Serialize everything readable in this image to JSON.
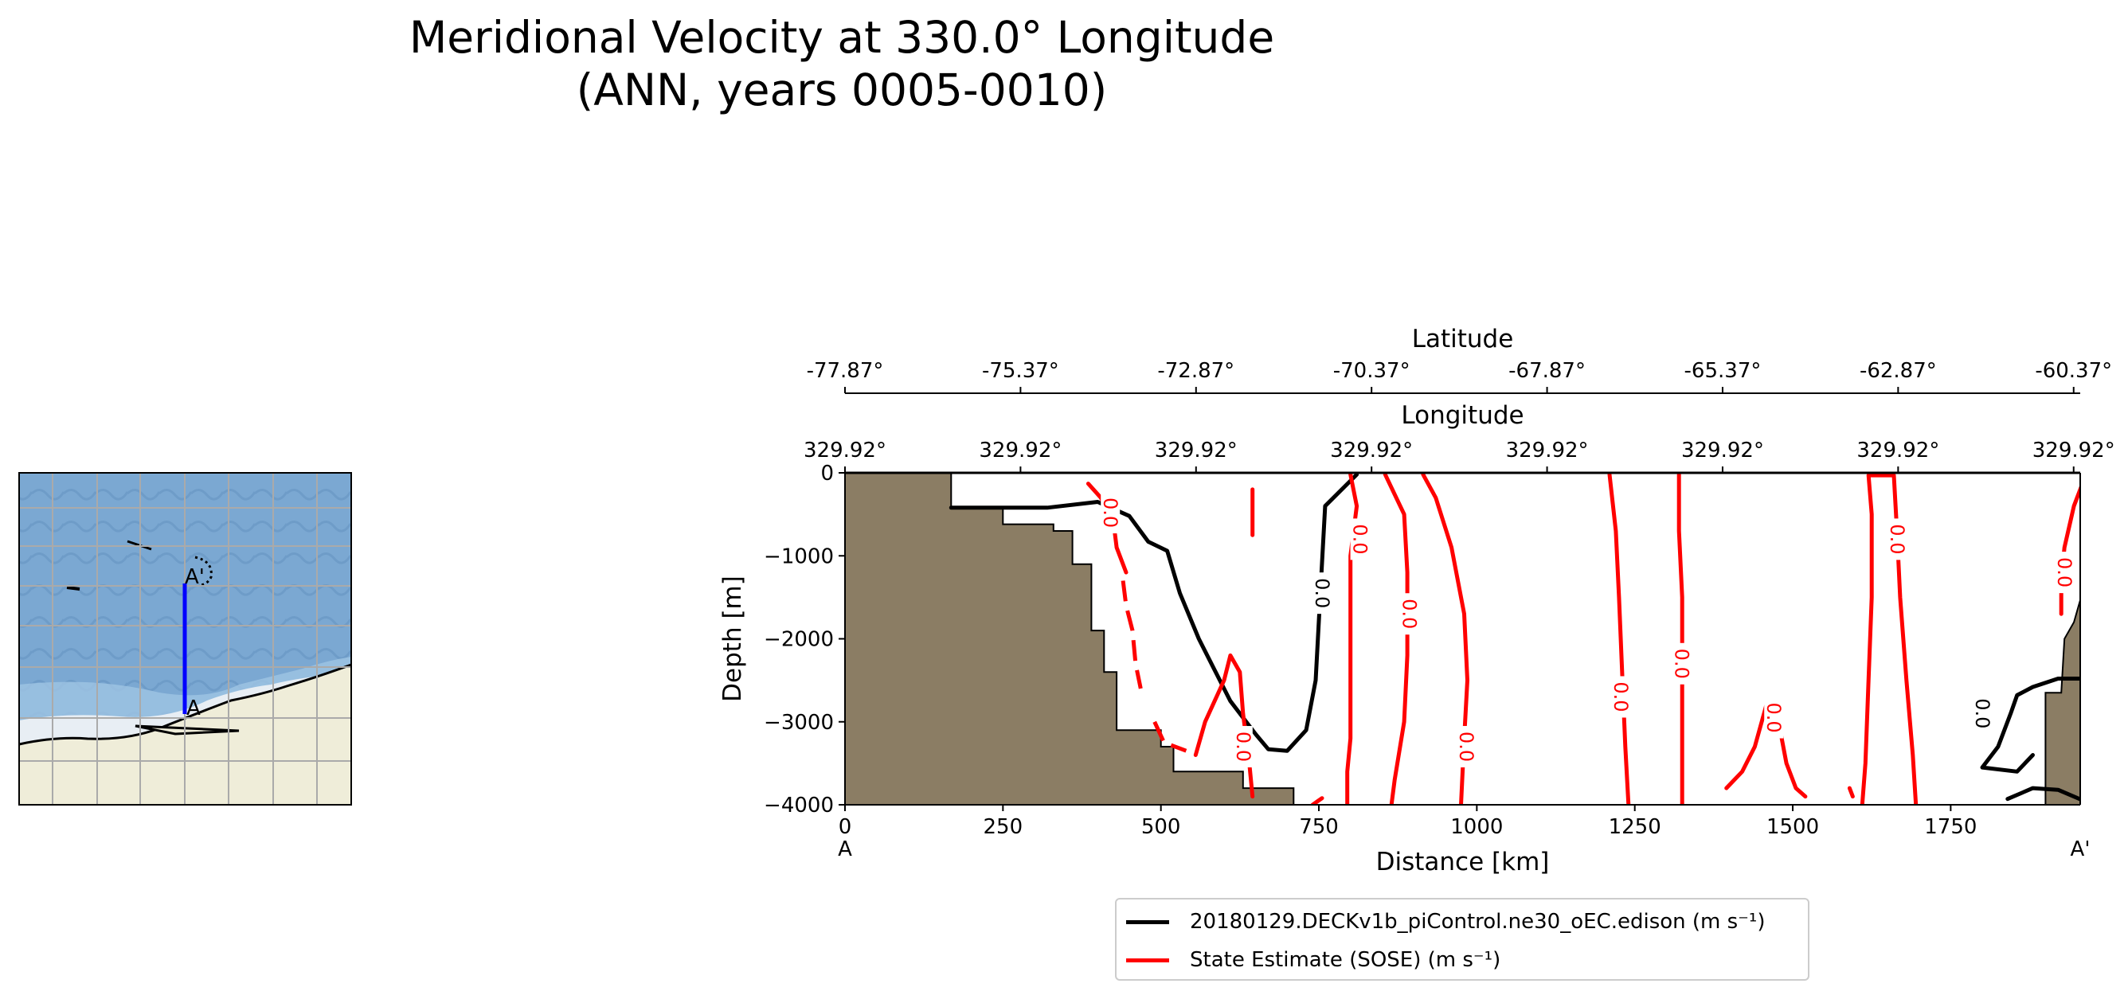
{
  "title": {
    "line1": "Meridional Velocity at 330.0° Longitude",
    "line2": "(ANN, years 0005-0010)"
  },
  "colors": {
    "model": "#000000",
    "obs": "#ff0000",
    "land": "#8b7d64",
    "ocean_map": "#7aa7cf",
    "land_map": "#efedd9",
    "transect": "#0000ff"
  },
  "inset_map": {
    "label_start": "A",
    "label_end": "A'",
    "icons": [
      "coastline-icon",
      "transect-line-icon"
    ]
  },
  "chart_data": {
    "type": "contour",
    "xlabel": "Distance [km]",
    "ylabel": "Depth [m]",
    "xlim": [
      0,
      1955
    ],
    "ylim": [
      -4000,
      0
    ],
    "x_ticks": [
      0,
      250,
      500,
      750,
      1000,
      1250,
      1500,
      1750
    ],
    "y_ticks": [
      0,
      -1000,
      -2000,
      -3000,
      -4000
    ],
    "x_tick_labels": [
      "0",
      "250",
      "500",
      "750",
      "1000",
      "1250",
      "1500",
      "1750"
    ],
    "y_tick_labels": [
      "0",
      "−1000",
      "−2000",
      "−3000",
      "−4000"
    ],
    "start_label": "A",
    "end_label": "A'",
    "lat_axis": {
      "label": "Latitude",
      "ticks": [
        0,
        277.8,
        555.6,
        833.4,
        1111.2,
        1389,
        1666.8,
        1944.6
      ],
      "tick_labels": [
        "-77.87°",
        "-75.37°",
        "-72.87°",
        "-70.37°",
        "-67.87°",
        "-65.37°",
        "-62.87°",
        "-60.37°"
      ]
    },
    "lon_axis": {
      "label": "Longitude",
      "ticks": [
        0,
        277.8,
        555.6,
        833.4,
        1111.2,
        1389,
        1666.8,
        1944.6
      ],
      "tick_labels": [
        "329.92°",
        "329.92°",
        "329.92°",
        "329.92°",
        "329.92°",
        "329.92°",
        "329.92°",
        "329.92°"
      ]
    },
    "contour_level": "0.0",
    "series": [
      {
        "name": "20180129.DECKv1b_piControl.ne30_oEC.edison (m s⁻¹)",
        "color": "#000000",
        "dash": "",
        "lines": [
          [
            [
              168,
              -420
            ],
            [
              320,
              -420
            ],
            [
              400,
              -350
            ],
            [
              450,
              -520
            ],
            [
              480,
              -830
            ],
            [
              510,
              -940
            ],
            [
              530,
              -1450
            ],
            [
              560,
              -2000
            ],
            [
              580,
              -2300
            ],
            [
              610,
              -2750
            ],
            [
              650,
              -3150
            ],
            [
              670,
              -3330
            ],
            [
              700,
              -3350
            ],
            [
              730,
              -3100
            ],
            [
              745,
              -2500
            ],
            [
              752,
              -1500
            ],
            [
              760,
              -400
            ],
            [
              810,
              -20
            ]
          ],
          [
            [
              1960,
              -2480
            ],
            [
              1920,
              -2480
            ],
            [
              1880,
              -2580
            ],
            [
              1855,
              -2680
            ],
            [
              1845,
              -2900
            ],
            [
              1825,
              -3300
            ],
            [
              1800,
              -3550
            ],
            [
              1855,
              -3600
            ],
            [
              1880,
              -3400
            ]
          ],
          [
            [
              1960,
              -3950
            ],
            [
              1920,
              -3820
            ],
            [
              1880,
              -3800
            ],
            [
              1840,
              -3930
            ]
          ]
        ]
      },
      {
        "name": "State Estimate (SOSE) (m s⁻¹)",
        "color": "#ff0000",
        "dash": "",
        "lines": [
          [
            [
              385,
              -130
            ],
            [
              405,
              -300
            ],
            [
              425,
              -600
            ],
            [
              430,
              -900
            ],
            [
              445,
              -1200
            ]
          ],
          [
            [
              555,
              -3400
            ],
            [
              570,
              -3000
            ],
            [
              600,
              -2500
            ],
            [
              610,
              -2200
            ],
            [
              625,
              -2400
            ],
            [
              630,
              -2900
            ],
            [
              640,
              -3500
            ],
            [
              645,
              -3900
            ]
          ],
          [
            [
              645,
              -200
            ],
            [
              645,
              -750
            ]
          ],
          [
            [
              740,
              -4000
            ],
            [
              755,
              -3920
            ]
          ],
          [
            [
              795,
              -4000
            ],
            [
              795,
              -3600
            ],
            [
              800,
              -3200
            ],
            [
              800,
              -1000
            ],
            [
              810,
              -400
            ],
            [
              800,
              -20
            ]
          ],
          [
            [
              855,
              -20
            ],
            [
              885,
              -500
            ],
            [
              890,
              -1200
            ],
            [
              890,
              -2200
            ],
            [
              885,
              -3000
            ],
            [
              870,
              -3700
            ],
            [
              865,
              -4000
            ]
          ],
          [
            [
              915,
              -20
            ],
            [
              935,
              -300
            ],
            [
              960,
              -900
            ],
            [
              980,
              -1700
            ],
            [
              985,
              -2500
            ],
            [
              980,
              -3200
            ],
            [
              975,
              -4000
            ]
          ],
          [
            [
              1210,
              -20
            ],
            [
              1220,
              -700
            ],
            [
              1225,
              -1500
            ],
            [
              1230,
              -2400
            ],
            [
              1235,
              -3300
            ],
            [
              1240,
              -4000
            ]
          ],
          [
            [
              1320,
              -20
            ],
            [
              1320,
              -700
            ],
            [
              1325,
              -1500
            ],
            [
              1325,
              -2300
            ],
            [
              1325,
              -3200
            ],
            [
              1325,
              -4000
            ]
          ],
          [
            [
              1395,
              -3800
            ],
            [
              1420,
              -3600
            ],
            [
              1440,
              -3300
            ],
            [
              1460,
              -2750
            ],
            [
              1480,
              -3100
            ],
            [
              1490,
              -3500
            ],
            [
              1505,
              -3800
            ],
            [
              1520,
              -3900
            ]
          ],
          [
            [
              1590,
              -3800
            ],
            [
              1595,
              -3900
            ]
          ],
          [
            [
              1610,
              -4000
            ],
            [
              1615,
              -3500
            ],
            [
              1620,
              -2500
            ],
            [
              1625,
              -1500
            ],
            [
              1625,
              -500
            ],
            [
              1620,
              -30
            ],
            [
              1660,
              -30
            ],
            [
              1665,
              -700
            ],
            [
              1670,
              -1500
            ],
            [
              1680,
              -2500
            ],
            [
              1690,
              -3400
            ],
            [
              1695,
              -4000
            ]
          ],
          [
            [
              1960,
              -100
            ],
            [
              1945,
              -400
            ],
            [
              1930,
              -900
            ],
            [
              1925,
              -1300
            ],
            [
              1925,
              -1700
            ]
          ]
        ],
        "dashed_lines": [
          [
            [
              440,
              -1300
            ],
            [
              445,
              -1600
            ],
            [
              455,
              -1900
            ],
            [
              460,
              -2300
            ],
            [
              468,
              -2600
            ]
          ],
          [
            [
              490,
              -3000
            ],
            [
              505,
              -3250
            ],
            [
              540,
              -3350
            ]
          ]
        ]
      }
    ],
    "contour_labels": [
      {
        "x": 755,
        "y": -1450,
        "text": "0.0",
        "color": "#000000"
      },
      {
        "x": 1800,
        "y": -2900,
        "text": "0.0",
        "color": "#000000"
      },
      {
        "x": 420,
        "y": -480,
        "text": "0.0",
        "color": "#ff0000"
      },
      {
        "x": 630,
        "y": -3300,
        "text": "0.0",
        "color": "#ff0000"
      },
      {
        "x": 815,
        "y": -800,
        "text": "0.0",
        "color": "#ff0000"
      },
      {
        "x": 893,
        "y": -1700,
        "text": "0.0",
        "color": "#ff0000"
      },
      {
        "x": 983,
        "y": -3300,
        "text": "0.0",
        "color": "#ff0000"
      },
      {
        "x": 1228,
        "y": -2700,
        "text": "0.0",
        "color": "#ff0000"
      },
      {
        "x": 1324,
        "y": -2300,
        "text": "0.0",
        "color": "#ff0000"
      },
      {
        "x": 1470,
        "y": -2950,
        "text": "0.0",
        "color": "#ff0000"
      },
      {
        "x": 1665,
        "y": -800,
        "text": "0.0",
        "color": "#ff0000"
      },
      {
        "x": 1930,
        "y": -1200,
        "text": "0.0",
        "color": "#ff0000"
      }
    ],
    "bathymetry": [
      [
        0,
        0
      ],
      [
        168,
        0
      ],
      [
        168,
        -420
      ],
      [
        250,
        -420
      ],
      [
        250,
        -620
      ],
      [
        330,
        -620
      ],
      [
        330,
        -700
      ],
      [
        360,
        -700
      ],
      [
        360,
        -1100
      ],
      [
        390,
        -1100
      ],
      [
        390,
        -1900
      ],
      [
        410,
        -1900
      ],
      [
        410,
        -2400
      ],
      [
        430,
        -2400
      ],
      [
        430,
        -3100
      ],
      [
        500,
        -3100
      ],
      [
        500,
        -3300
      ],
      [
        520,
        -3300
      ],
      [
        520,
        -3600
      ],
      [
        630,
        -3600
      ],
      [
        630,
        -3800
      ],
      [
        710,
        -3800
      ],
      [
        710,
        -4000
      ],
      [
        0,
        -4000
      ]
    ],
    "bathymetry_right": [
      [
        1960,
        -1400
      ],
      [
        1945,
        -1800
      ],
      [
        1930,
        -2000
      ],
      [
        1925,
        -2650
      ],
      [
        1900,
        -2650
      ],
      [
        1900,
        -4000
      ],
      [
        1960,
        -4000
      ]
    ]
  },
  "legend": {
    "items": [
      {
        "label": "20180129.DECKv1b_piControl.ne30_oEC.edison (m s⁻¹)",
        "color": "#000000"
      },
      {
        "label": "State Estimate (SOSE) (m s⁻¹)",
        "color": "#ff0000"
      }
    ]
  }
}
